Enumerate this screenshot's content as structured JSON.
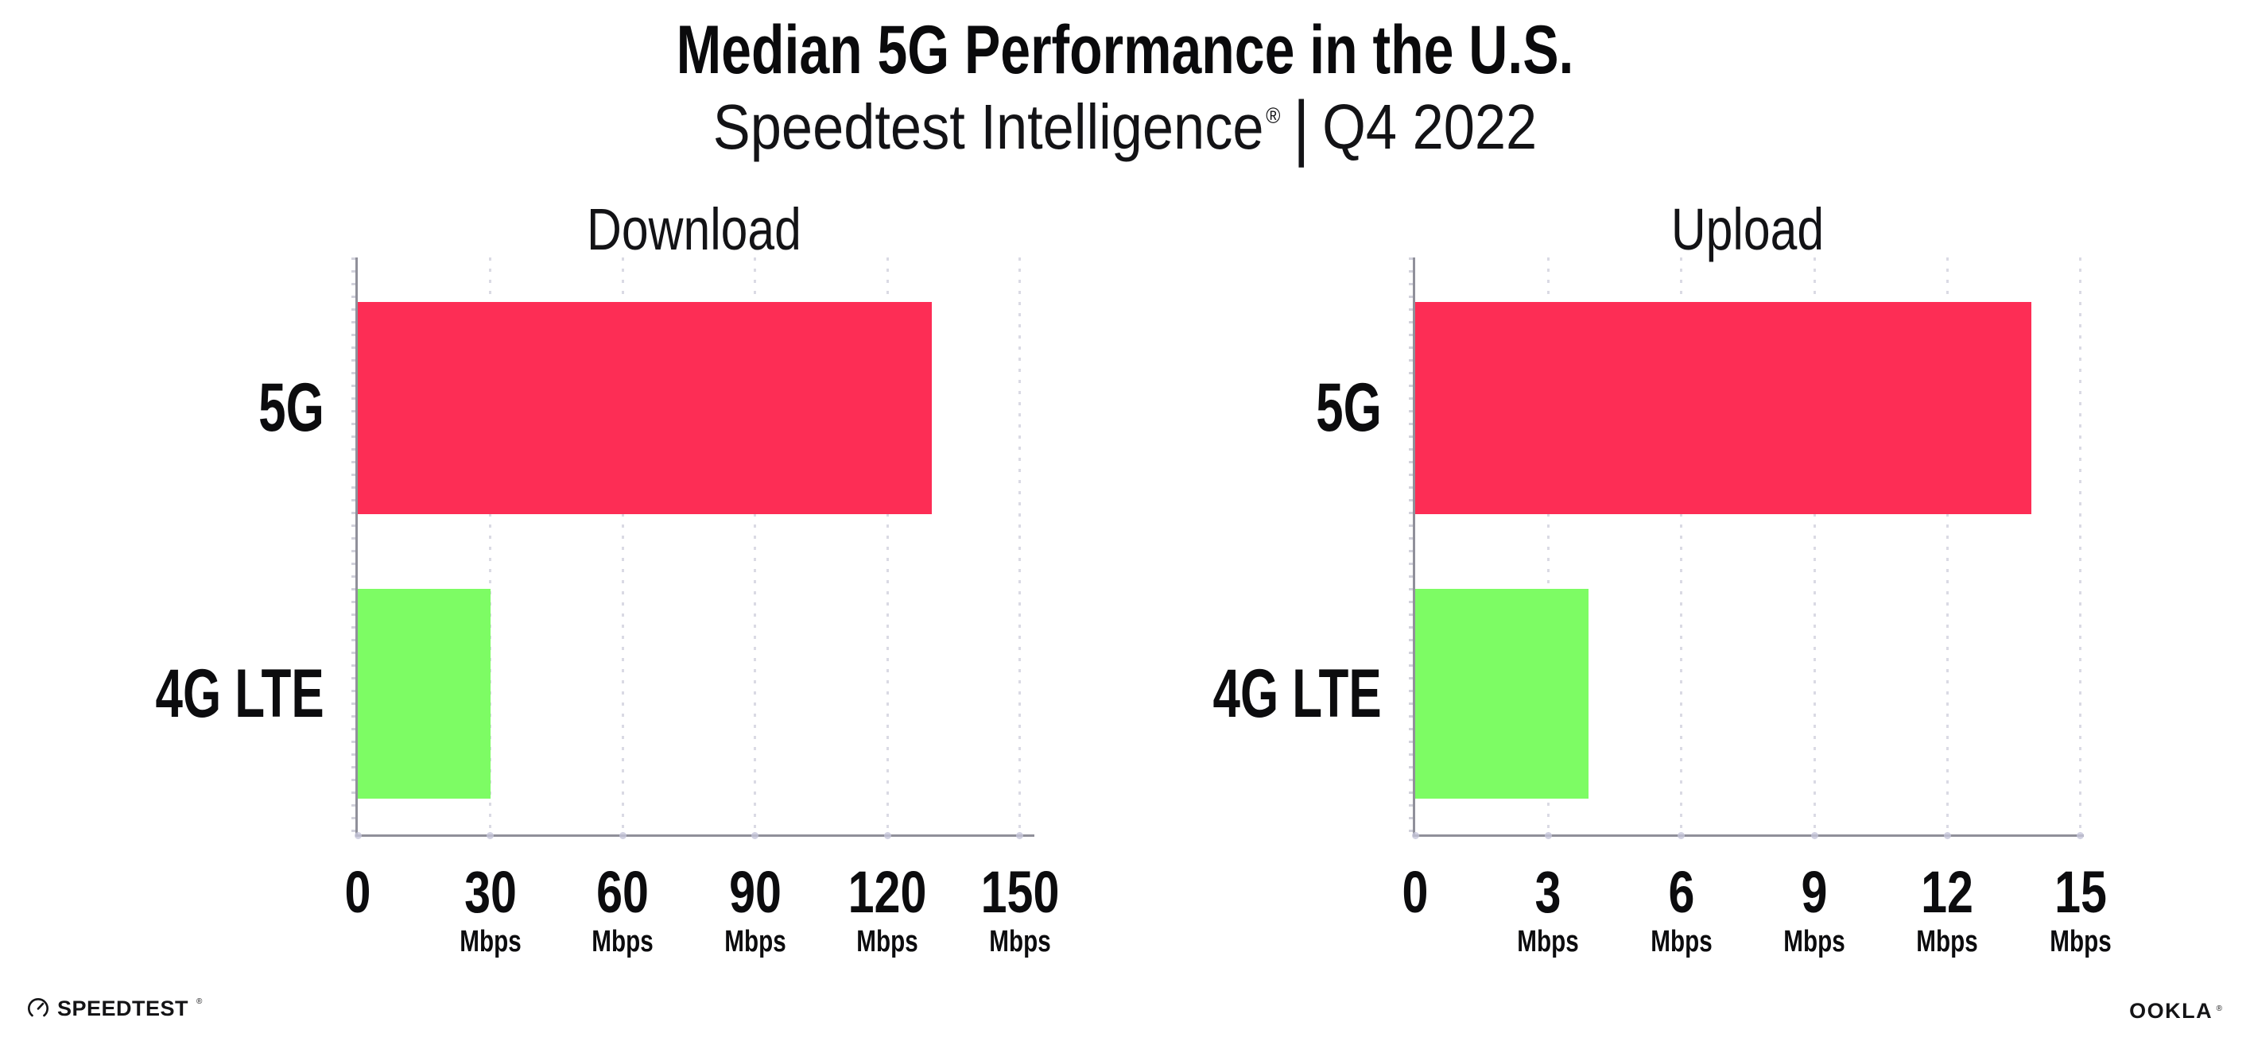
{
  "header": {
    "title": "Median 5G Performance in the U.S.",
    "subtitle": {
      "brand": "Speedtest Intelligence",
      "registered_mark": "®",
      "separator": "|",
      "period": "Q4 2022"
    }
  },
  "chart_data": [
    {
      "type": "bar",
      "orientation": "horizontal",
      "title": "Download",
      "categories": [
        "5G",
        "4G LTE"
      ],
      "values": [
        130,
        30
      ],
      "value_unit": "Mbps",
      "bar_colors": [
        "#FD2D55",
        "#7DFC64"
      ],
      "xticks": [
        0,
        30,
        60,
        90,
        120,
        150
      ],
      "xtick_unit": "Mbps",
      "xlim": [
        0,
        153
      ],
      "grid": "vertical-dotted",
      "legend": "none"
    },
    {
      "type": "bar",
      "orientation": "horizontal",
      "title": "Upload",
      "categories": [
        "5G",
        "4G LTE"
      ],
      "values": [
        13.9,
        3.9
      ],
      "value_unit": "Mbps",
      "bar_colors": [
        "#FD2D55",
        "#7DFC64"
      ],
      "xticks": [
        0,
        3,
        6,
        9,
        12,
        15
      ],
      "xtick_unit": "Mbps",
      "xlim": [
        0,
        15.1
      ],
      "grid": "vertical-dotted",
      "legend": "none"
    }
  ],
  "colors": {
    "bar_5g": "#FD2D55",
    "bar_4g_lte": "#7DFC64",
    "axis_line": "#90909A",
    "gridline_dots": "#DADAE4",
    "text": "#0C0C0E",
    "background": "#FFFFFF"
  },
  "footer": {
    "speedtest": {
      "icon": "speedometer-gauge-icon",
      "wordmark": "SPEEDTEST",
      "registered_mark": "®"
    },
    "ookla": {
      "wordmark": "OOKLA",
      "registered_mark": "®"
    }
  }
}
